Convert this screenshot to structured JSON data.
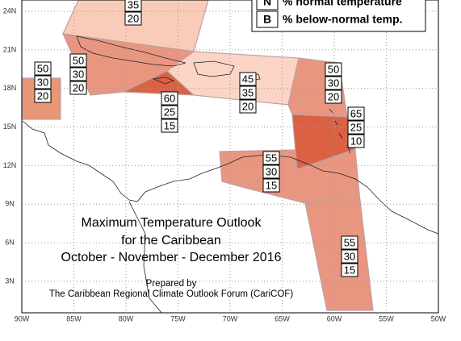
{
  "map": {
    "title": [
      "Maximum Temperature Outlook",
      "for the Caribbean",
      "October - November - December 2016"
    ],
    "credit": [
      "Prepared by",
      "The Caribbean Regional Climate Outlook Forum (CariCOF)"
    ],
    "legend": [
      {
        "key": "N",
        "label": "% normal temperature"
      },
      {
        "key": "B",
        "label": "% below-normal temp."
      }
    ],
    "xlim": [
      -90,
      -50
    ],
    "ylim": [
      0.55,
      24.88
    ],
    "xticks": [
      {
        "value": -90,
        "label": "90W"
      },
      {
        "value": -85,
        "label": "85W"
      },
      {
        "value": -80,
        "label": "80W"
      },
      {
        "value": -75,
        "label": "75W"
      },
      {
        "value": -70,
        "label": "70W"
      },
      {
        "value": -65,
        "label": "65W"
      },
      {
        "value": -60,
        "label": "60W"
      },
      {
        "value": -55,
        "label": "55W"
      },
      {
        "value": -50,
        "label": "50W"
      }
    ],
    "yticks": [
      {
        "value": 3,
        "label": "3N"
      },
      {
        "value": 6,
        "label": "6N"
      },
      {
        "value": 9,
        "label": "9N"
      },
      {
        "value": 12,
        "label": "12N"
      },
      {
        "value": 15,
        "label": "15N"
      },
      {
        "value": 18,
        "label": "18N"
      },
      {
        "value": 21,
        "label": "21N"
      },
      {
        "value": 24,
        "label": "24N"
      }
    ],
    "grid": true,
    "regions": [
      {
        "values": [
          35,
          20
        ],
        "color": "#f9c9b5"
      },
      {
        "values": [
          50,
          30,
          20
        ],
        "color": "#e8906f"
      },
      {
        "values": [
          50,
          30,
          20
        ],
        "color": "#e8907a"
      },
      {
        "values": [
          60,
          25,
          15
        ],
        "color": "#d9583a"
      },
      {
        "values": [
          45,
          35,
          20
        ],
        "color": "#fbd2c2"
      },
      {
        "values": [
          50,
          30,
          20
        ],
        "color": "#e8907a"
      },
      {
        "values": [
          65,
          25,
          10
        ],
        "color": "#d9583a"
      },
      {
        "values": [
          55,
          30,
          15
        ],
        "color": "#e8907a"
      },
      {
        "values": [
          55,
          30,
          15
        ],
        "color": "#e8907a"
      }
    ]
  }
}
